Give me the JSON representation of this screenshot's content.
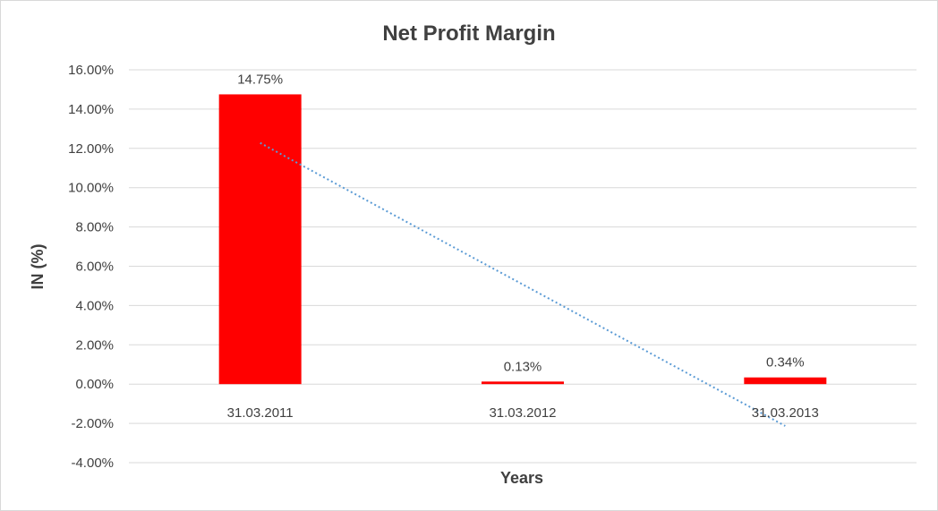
{
  "chart_data": {
    "type": "bar",
    "title": "Net Profit Margin",
    "xlabel": "Years",
    "ylabel": "IN (%)",
    "categories": [
      "31.03.2011",
      "31.03.2012",
      "31.03.2013"
    ],
    "series": [
      {
        "values": [
          14.75,
          0.13,
          0.34
        ],
        "data_labels": [
          "14.75%",
          "0.13%",
          "0.34%"
        ],
        "color": "#ff0000"
      }
    ],
    "ylim": [
      -4,
      16
    ],
    "yticks": [
      16,
      14,
      12,
      10,
      8,
      6,
      4,
      2,
      0,
      -2,
      -4
    ],
    "ytick_labels": [
      "16.00%",
      "14.00%",
      "12.00%",
      "10.00%",
      "8.00%",
      "6.00%",
      "4.00%",
      "2.00%",
      "0.00%",
      "-2.00%",
      "-4.00%"
    ],
    "grid": true,
    "trendline": {
      "type": "linear",
      "color": "#5b9bd5",
      "style": "dotted"
    }
  }
}
